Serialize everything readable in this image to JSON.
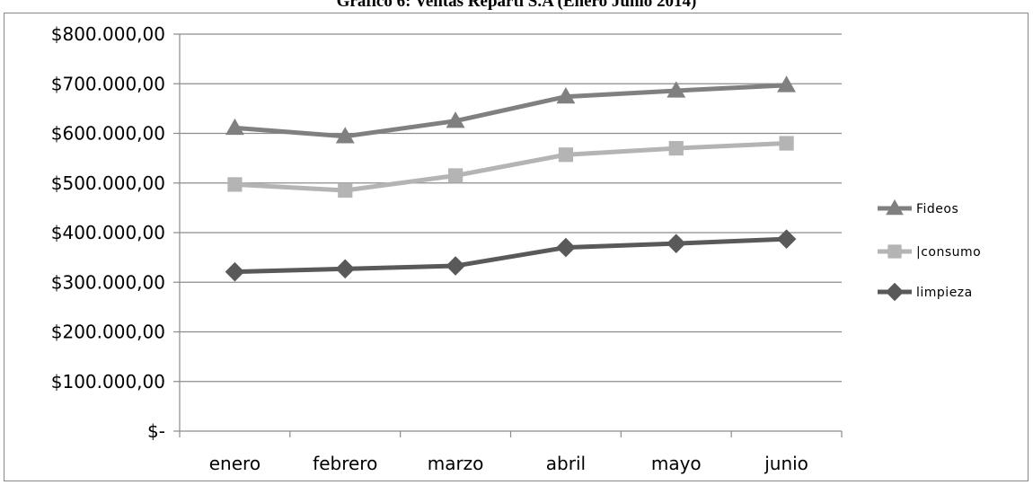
{
  "chart_data": {
    "type": "line",
    "title": "Gráfico 6: Ventas Reparti S.A (Enero Junio 2014)",
    "categories": [
      "enero",
      "febrero",
      "marzo",
      "abril",
      "mayo",
      "junio"
    ],
    "y_tick_labels": [
      "$-",
      "$100.000,00",
      "$200.000,00",
      "$300.000,00",
      "$400.000,00",
      "$500.000,00",
      "$600.000,00",
      "$700.000,00",
      "$800.000,00"
    ],
    "ylim": [
      0,
      800000
    ],
    "ystep": 100000,
    "grid": true,
    "legend_position": "right",
    "series": [
      {
        "name": "Fideos",
        "marker": "triangle",
        "color": "#808080",
        "values": [
          611000,
          594000,
          625000,
          674000,
          686000,
          697000
        ]
      },
      {
        "name": "|consumo",
        "marker": "square",
        "color": "#b4b4b4",
        "values": [
          497000,
          485000,
          515000,
          557000,
          570000,
          580000
        ]
      },
      {
        "name": "limpieza",
        "marker": "diamond",
        "color": "#595959",
        "values": [
          321000,
          327000,
          333000,
          370000,
          378000,
          387000
        ]
      }
    ]
  }
}
